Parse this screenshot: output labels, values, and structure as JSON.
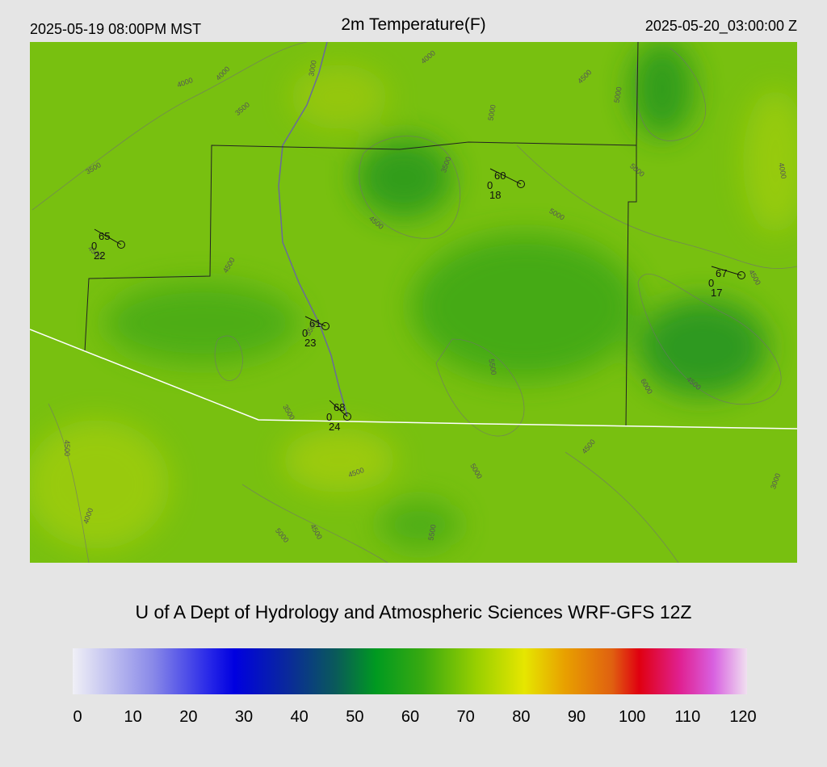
{
  "header": {
    "valid_local": "2025-05-19 08:00PM MST",
    "title": "2m Temperature(F)",
    "valid_utc": "2025-05-20_03:00:00 Z"
  },
  "stations": [
    {
      "temperature": "65",
      "cloud": "0",
      "dewpoint": "22"
    },
    {
      "temperature": "60",
      "cloud": "0",
      "dewpoint": "18"
    },
    {
      "temperature": "67",
      "cloud": "0",
      "dewpoint": "17"
    },
    {
      "temperature": "61",
      "cloud": "0",
      "dewpoint": "23"
    },
    {
      "temperature": "68",
      "cloud": "0",
      "dewpoint": "24"
    }
  ],
  "contour_labels": [
    "4000",
    "4000",
    "3500",
    "3000",
    "4000",
    "4500",
    "5000",
    "5000",
    "3500",
    "3500",
    "5000",
    "5000",
    "4000",
    "4500",
    "4500",
    "4500",
    "4500",
    "5500",
    "5500",
    "6000",
    "4500",
    "3500",
    "4500",
    "4500",
    "5000",
    "4500",
    "3000",
    "4000",
    "4500",
    "5000",
    "5500"
  ],
  "credit": "U of A Dept of Hydrology and Atmospheric Sciences WRF-GFS 12Z",
  "colorbar": {
    "range": [
      0,
      120
    ],
    "ticks": [
      0,
      10,
      20,
      30,
      40,
      50,
      60,
      70,
      80,
      90,
      100,
      110,
      120
    ]
  }
}
